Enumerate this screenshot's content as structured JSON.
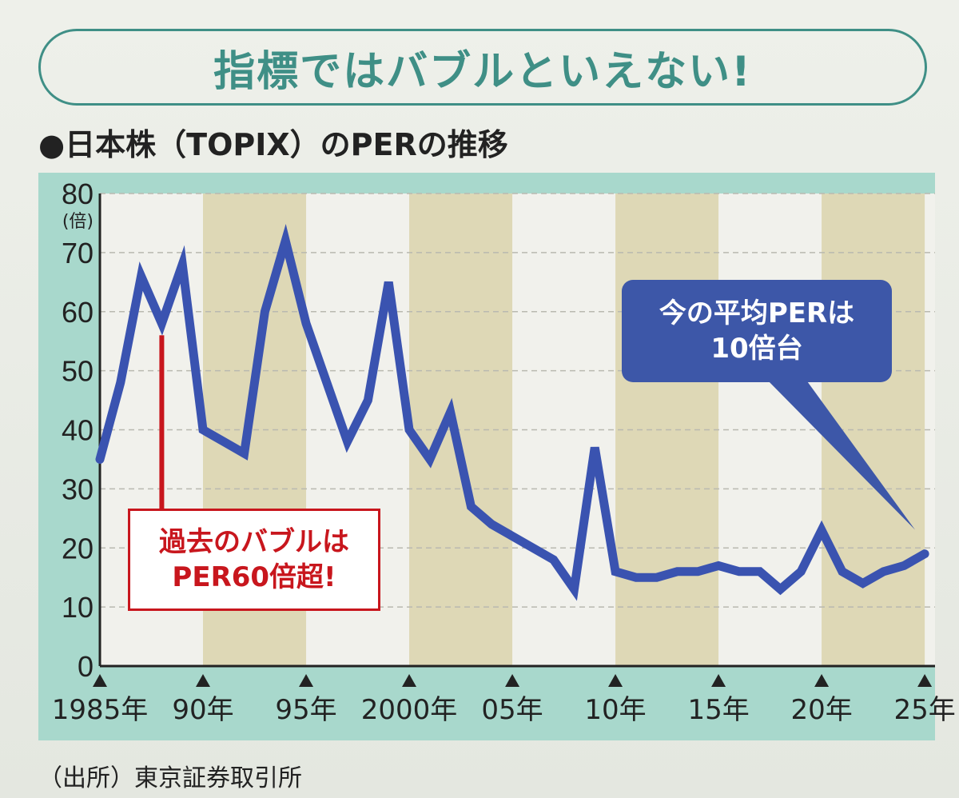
{
  "header": {
    "title": "指標ではバブルといえない!",
    "subtitle": "●日本株（TOPIX）のPERの推移"
  },
  "source": "（出所）東京証券取引所",
  "colors": {
    "accent": "#3f8f86",
    "line": "#3a53b0",
    "red": "#c8161d",
    "blue_box": "#3d57a8",
    "band_tan": "#ded8b6",
    "band_light": "#f1f1ec",
    "frame": "#a8d8cc"
  },
  "callouts": {
    "past_bubble": [
      "過去のバブルは",
      "PER60倍超!"
    ],
    "current": [
      "今の平均PERは",
      "10倍台"
    ]
  },
  "chart_data": {
    "type": "line",
    "title": "●日本株（TOPIX）のPERの推移",
    "ylabel": "(倍)",
    "ylim": [
      0,
      80
    ],
    "yticks": [
      "0",
      "10",
      "20",
      "30",
      "40",
      "50",
      "60",
      "70",
      "80"
    ],
    "xlim": [
      1985,
      2025.5
    ],
    "xtick_years": [
      1985,
      1990,
      1995,
      2000,
      2005,
      2010,
      2015,
      2020,
      2025
    ],
    "xtick_labels": [
      "1985年",
      "90年",
      "95年",
      "2000年",
      "05年",
      "10年",
      "15年",
      "20年",
      "25年"
    ],
    "grid": true,
    "series": [
      {
        "x": [
          1985,
          1986,
          1987,
          1988,
          1989,
          1990,
          1991,
          1992,
          1993,
          1994,
          1995,
          1996,
          1997,
          1998,
          1999,
          2000,
          2001,
          2002,
          2003,
          2004,
          2005,
          2006,
          2007,
          2008,
          2009,
          2010,
          2011,
          2012,
          2013,
          2014,
          2015,
          2016,
          2017,
          2018,
          2019,
          2020,
          2021,
          2022,
          2023,
          2024,
          2025
        ],
        "values": [
          35,
          48,
          66,
          58,
          68,
          40,
          38,
          36,
          60,
          72,
          58,
          48,
          38,
          45,
          65,
          40,
          35,
          43,
          27,
          24,
          22,
          20,
          18,
          13,
          37,
          16,
          15,
          15,
          16,
          16,
          17,
          16,
          16,
          13,
          16,
          23,
          16,
          14,
          16,
          17,
          19
        ]
      }
    ]
  }
}
